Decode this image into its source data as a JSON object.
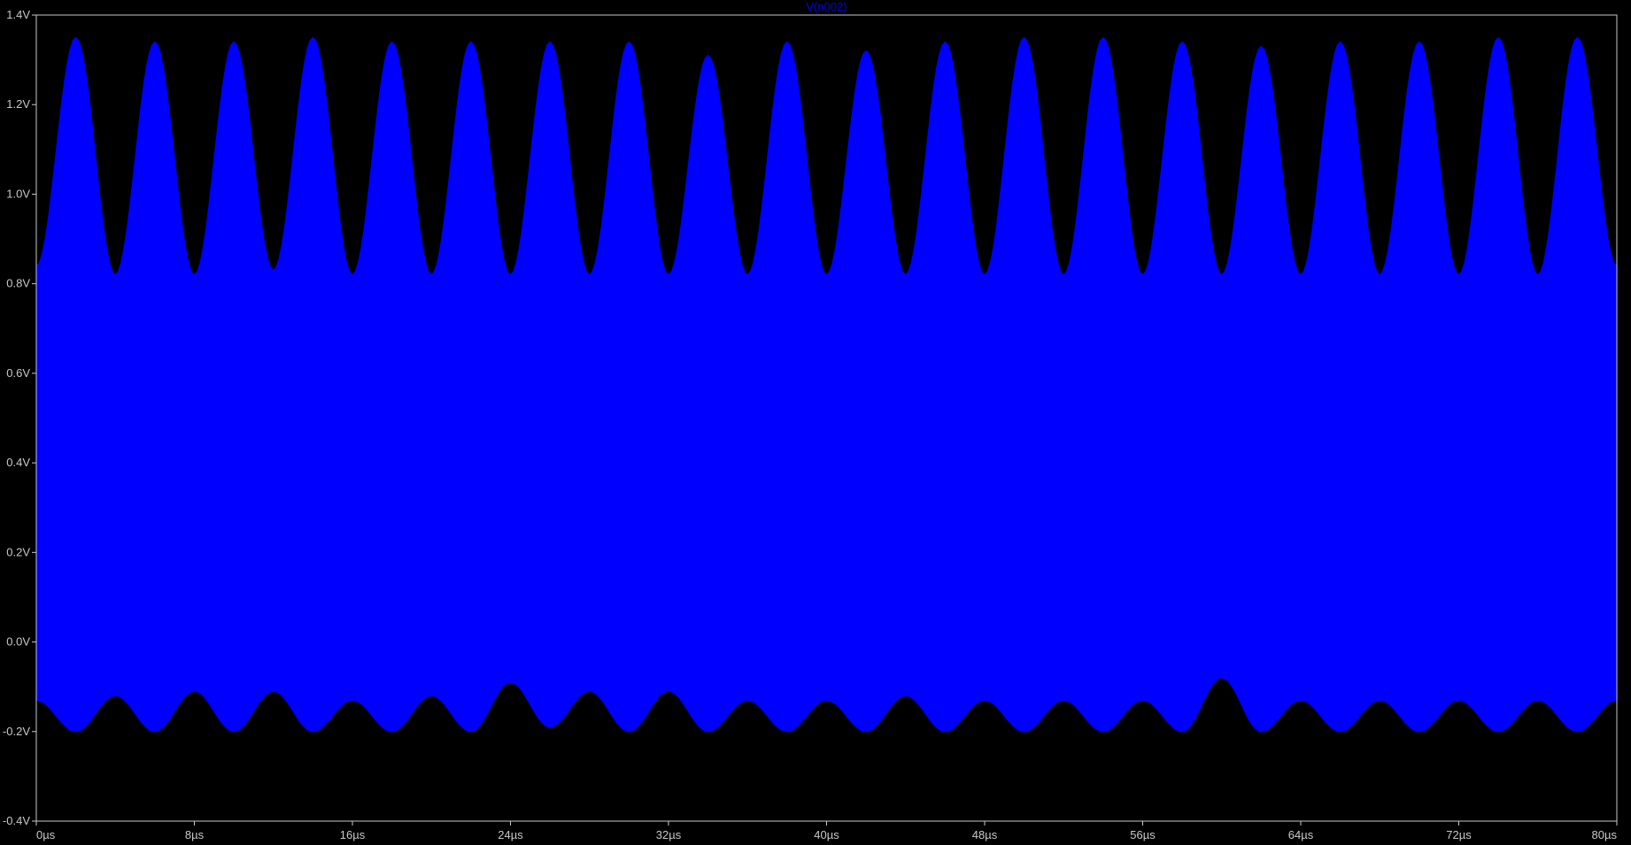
{
  "window": {
    "background": "#000000",
    "axis_color": "#c8c8c8",
    "trace_color": "#0000ff"
  },
  "chart_data": {
    "type": "area",
    "title": "V(n002)",
    "xlabel": "",
    "ylabel": "",
    "x_unit": "µs",
    "y_unit": "V",
    "xlim": [
      0,
      80
    ],
    "ylim": [
      -0.4,
      1.4
    ],
    "grid": false,
    "x_ticks": [
      0,
      8,
      16,
      24,
      32,
      40,
      48,
      56,
      64,
      72,
      80
    ],
    "x_tick_labels": [
      "0µs",
      "8µs",
      "16µs",
      "24µs",
      "32µs",
      "40µs",
      "48µs",
      "56µs",
      "64µs",
      "72µs",
      "80µs"
    ],
    "y_ticks": [
      -0.4,
      -0.2,
      0.0,
      0.2,
      0.4,
      0.6,
      0.8,
      1.0,
      1.2,
      1.4
    ],
    "y_tick_labels": [
      "-0.4V",
      "-0.2V",
      "0.0V",
      "0.2V",
      "0.4V",
      "0.6V",
      "0.8V",
      "1.0V",
      "1.2V",
      "1.4V"
    ],
    "series": [
      {
        "name": "V(n002)",
        "color": "#0000ff",
        "envelope_upper": {
          "x": [
            0,
            2.0,
            4.0,
            6.0,
            8.0,
            10.0,
            12.0,
            14.0,
            16.0,
            18.0,
            20.0,
            22.0,
            24.0,
            26.0,
            28.0,
            30.0,
            32.0,
            34.0,
            36.0,
            38.0,
            40.0,
            42.0,
            44.0,
            46.0,
            48.0,
            50.0,
            52.0,
            54.0,
            56.0,
            58.0,
            60.0,
            62.0,
            64.0,
            66.0,
            68.0,
            70.0,
            72.0,
            74.0,
            76.0,
            78.0,
            80.0
          ],
          "y": [
            0.84,
            1.35,
            0.82,
            1.34,
            0.82,
            1.34,
            0.83,
            1.35,
            0.82,
            1.34,
            0.82,
            1.34,
            0.82,
            1.34,
            0.82,
            1.34,
            0.82,
            1.31,
            0.82,
            1.34,
            0.82,
            1.32,
            0.82,
            1.34,
            0.82,
            1.35,
            0.82,
            1.35,
            0.82,
            1.34,
            0.82,
            1.33,
            0.82,
            1.34,
            0.82,
            1.34,
            0.82,
            1.35,
            0.82,
            1.35,
            0.84
          ]
        },
        "envelope_lower": {
          "x": [
            0,
            2.0,
            4.0,
            6.0,
            8.0,
            10.0,
            12.0,
            14.0,
            16.0,
            18.0,
            20.0,
            22.0,
            24.0,
            26.0,
            28.0,
            30.0,
            32.0,
            34.0,
            36.0,
            38.0,
            40.0,
            42.0,
            44.0,
            46.0,
            48.0,
            50.0,
            52.0,
            54.0,
            56.0,
            58.0,
            60.0,
            62.0,
            64.0,
            66.0,
            68.0,
            70.0,
            72.0,
            74.0,
            76.0,
            78.0,
            80.0
          ],
          "y": [
            -0.13,
            -0.2,
            -0.12,
            -0.2,
            -0.11,
            -0.2,
            -0.11,
            -0.2,
            -0.13,
            -0.2,
            -0.12,
            -0.2,
            -0.09,
            -0.19,
            -0.11,
            -0.2,
            -0.11,
            -0.2,
            -0.13,
            -0.2,
            -0.13,
            -0.2,
            -0.12,
            -0.2,
            -0.13,
            -0.2,
            -0.13,
            -0.2,
            -0.13,
            -0.2,
            -0.08,
            -0.2,
            -0.13,
            -0.2,
            -0.13,
            -0.2,
            -0.13,
            -0.2,
            -0.13,
            -0.2,
            -0.13
          ]
        }
      }
    ]
  }
}
